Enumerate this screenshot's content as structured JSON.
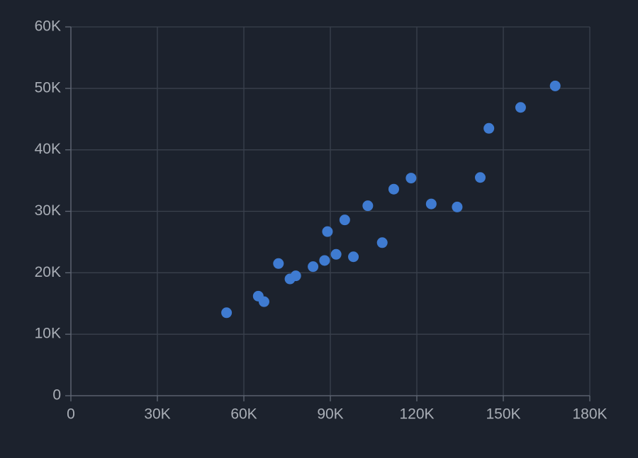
{
  "chart_data": {
    "type": "scatter",
    "x": [
      54000,
      65000,
      67000,
      72000,
      76000,
      78000,
      84000,
      88000,
      89000,
      92000,
      95000,
      98000,
      103000,
      108000,
      112000,
      118000,
      125000,
      134000,
      142000,
      145000,
      156000,
      168000
    ],
    "values": [
      13500,
      16200,
      15300,
      21500,
      19000,
      19500,
      21000,
      22000,
      26700,
      23000,
      28600,
      22600,
      30900,
      24900,
      33600,
      35400,
      31200,
      30700,
      35500,
      43500,
      46900,
      50400
    ],
    "color": "#3f7bd1",
    "xlim": [
      0,
      180000
    ],
    "xticks": [
      0,
      {
        "value": 30000,
        "label": "30K"
      },
      {
        "value": 60000,
        "label": "60K"
      },
      {
        "value": 90000,
        "label": "90K"
      },
      {
        "value": 120000,
        "label": "120K"
      },
      {
        "value": 150000,
        "label": "150K"
      },
      {
        "value": 180000,
        "label": "180K"
      }
    ],
    "ylim": [
      0,
      60000
    ],
    "yticks": [
      0,
      {
        "value": 10000,
        "label": "10K"
      },
      {
        "value": 20000,
        "label": "20K"
      },
      {
        "value": 30000,
        "label": "30K"
      },
      {
        "value": 40000,
        "label": "40K"
      },
      {
        "value": 50000,
        "label": "50K"
      },
      {
        "value": 60000,
        "label": "60K"
      }
    ],
    "grid": true
  }
}
